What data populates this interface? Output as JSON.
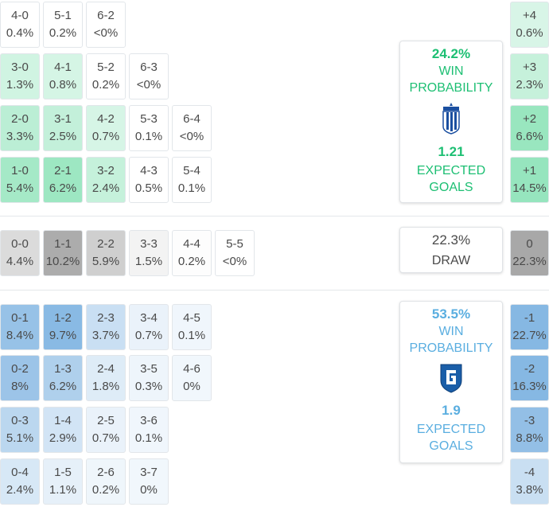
{
  "colors": {
    "home_accent": "#1dbf73",
    "away_accent": "#5aaee0",
    "draw_text": "#4a4a4a"
  },
  "home_card": {
    "win_pct": "24.2%",
    "win_label": "WIN PROBABILITY",
    "crest_icon": "lech-poznan-crest-icon",
    "xg_value": "1.21",
    "xg_label": "EXPECTED GOALS"
  },
  "draw_card": {
    "pct": "22.3%",
    "label": "DRAW"
  },
  "away_card": {
    "win_pct": "53.5%",
    "win_label": "WIN PROBABILITY",
    "crest_icon": "genk-crest-icon",
    "xg_value": "1.9",
    "xg_label": "EXPECTED GOALS"
  },
  "home_scores": [
    [
      {
        "score": "4-0",
        "pct": "0.4%"
      },
      {
        "score": "5-1",
        "pct": "0.2%"
      },
      {
        "score": "6-2",
        "pct": "<0%"
      }
    ],
    [
      {
        "score": "3-0",
        "pct": "1.3%"
      },
      {
        "score": "4-1",
        "pct": "0.8%"
      },
      {
        "score": "5-2",
        "pct": "0.2%"
      },
      {
        "score": "6-3",
        "pct": "<0%"
      }
    ],
    [
      {
        "score": "2-0",
        "pct": "3.3%"
      },
      {
        "score": "3-1",
        "pct": "2.5%"
      },
      {
        "score": "4-2",
        "pct": "0.7%"
      },
      {
        "score": "5-3",
        "pct": "0.1%"
      },
      {
        "score": "6-4",
        "pct": "<0%"
      }
    ],
    [
      {
        "score": "1-0",
        "pct": "5.4%"
      },
      {
        "score": "2-1",
        "pct": "6.2%"
      },
      {
        "score": "3-2",
        "pct": "2.4%"
      },
      {
        "score": "4-3",
        "pct": "0.5%"
      },
      {
        "score": "5-4",
        "pct": "0.1%"
      }
    ]
  ],
  "draw_scores": [
    [
      {
        "score": "0-0",
        "pct": "4.4%"
      },
      {
        "score": "1-1",
        "pct": "10.2%"
      },
      {
        "score": "2-2",
        "pct": "5.9%"
      },
      {
        "score": "3-3",
        "pct": "1.5%"
      },
      {
        "score": "4-4",
        "pct": "0.2%"
      },
      {
        "score": "5-5",
        "pct": "<0%"
      }
    ]
  ],
  "away_scores": [
    [
      {
        "score": "0-1",
        "pct": "8.4%"
      },
      {
        "score": "1-2",
        "pct": "9.7%"
      },
      {
        "score": "2-3",
        "pct": "3.7%"
      },
      {
        "score": "3-4",
        "pct": "0.7%"
      },
      {
        "score": "4-5",
        "pct": "0.1%"
      }
    ],
    [
      {
        "score": "0-2",
        "pct": "8%"
      },
      {
        "score": "1-3",
        "pct": "6.2%"
      },
      {
        "score": "2-4",
        "pct": "1.8%"
      },
      {
        "score": "3-5",
        "pct": "0.3%"
      },
      {
        "score": "4-6",
        "pct": "0%"
      }
    ],
    [
      {
        "score": "0-3",
        "pct": "5.1%"
      },
      {
        "score": "1-4",
        "pct": "2.9%"
      },
      {
        "score": "2-5",
        "pct": "0.7%"
      },
      {
        "score": "3-6",
        "pct": "0.1%"
      }
    ],
    [
      {
        "score": "0-4",
        "pct": "2.4%"
      },
      {
        "score": "1-5",
        "pct": "1.1%"
      },
      {
        "score": "2-6",
        "pct": "0.2%"
      },
      {
        "score": "3-7",
        "pct": "0%"
      }
    ]
  ],
  "margins": [
    {
      "score": "+4",
      "pct": "0.6%"
    },
    {
      "score": "+3",
      "pct": "2.3%"
    },
    {
      "score": "+2",
      "pct": "6.6%"
    },
    {
      "score": "+1",
      "pct": "14.5%"
    },
    {
      "score": "0",
      "pct": "22.3%"
    },
    {
      "score": "-1",
      "pct": "22.7%"
    },
    {
      "score": "-2",
      "pct": "16.3%"
    },
    {
      "score": "-3",
      "pct": "8.8%"
    },
    {
      "score": "-4",
      "pct": "3.8%"
    }
  ]
}
